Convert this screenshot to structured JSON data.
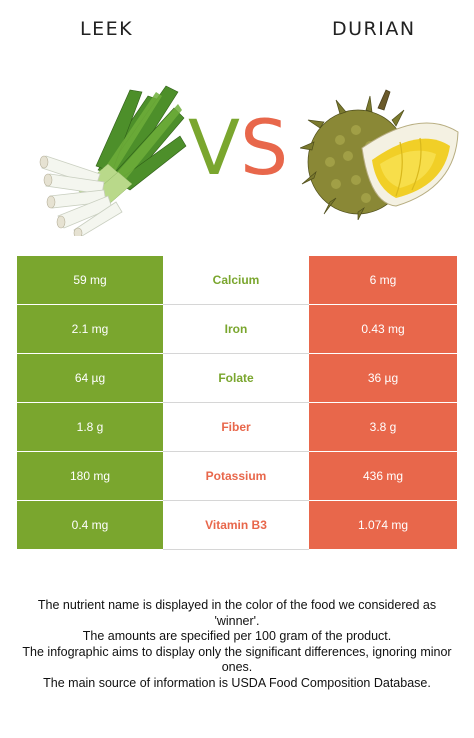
{
  "header": {
    "left_food": "LEEK",
    "right_food": "DURIAN",
    "vs_v": "V",
    "vs_s": "S"
  },
  "colors": {
    "leek": "#7aa62e",
    "durian": "#e8674b"
  },
  "rows": [
    {
      "left": "59 mg",
      "nutrient": "Calcium",
      "right": "6 mg",
      "winner": "leek"
    },
    {
      "left": "2.1 mg",
      "nutrient": "Iron",
      "right": "0.43 mg",
      "winner": "leek"
    },
    {
      "left": "64 µg",
      "nutrient": "Folate",
      "right": "36 µg",
      "winner": "leek"
    },
    {
      "left": "1.8 g",
      "nutrient": "Fiber",
      "right": "3.8 g",
      "winner": "durian"
    },
    {
      "left": "180 mg",
      "nutrient": "Potassium",
      "right": "436 mg",
      "winner": "durian"
    },
    {
      "left": "0.4 mg",
      "nutrient": "Vitamin B3",
      "right": "1.074 mg",
      "winner": "durian"
    }
  ],
  "footer": [
    "The nutrient name is displayed in the color of the food we considered as 'winner'.",
    "The amounts are specified per 100 gram of the product.",
    "The infographic aims to display only the significant differences, ignoring minor ones.",
    "The main source of information is USDA Food Composition Database."
  ]
}
